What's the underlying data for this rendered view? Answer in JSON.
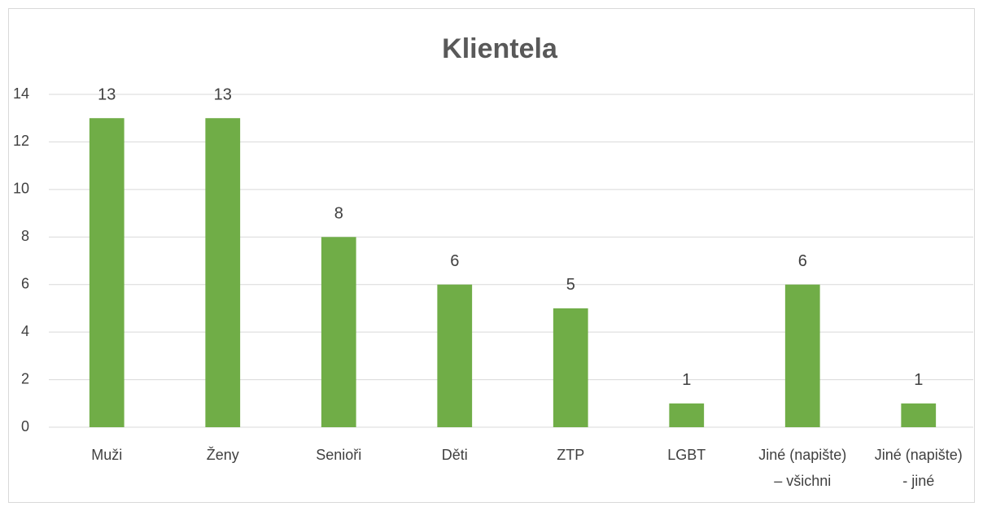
{
  "chart_data": {
    "type": "bar",
    "title": "Klientela",
    "categories": [
      "Muži",
      "Ženy",
      "Senioři",
      "Děti",
      "ZTP",
      "LGBT",
      "Jiné (napište) – všichni",
      "Jiné (napište) - jiné"
    ],
    "values": [
      13,
      13,
      8,
      6,
      5,
      1,
      6,
      1
    ],
    "color": "#70ad47",
    "ylim": [
      0,
      14
    ],
    "yticks": [
      0,
      2,
      4,
      6,
      8,
      10,
      12,
      14
    ],
    "grid": true
  }
}
